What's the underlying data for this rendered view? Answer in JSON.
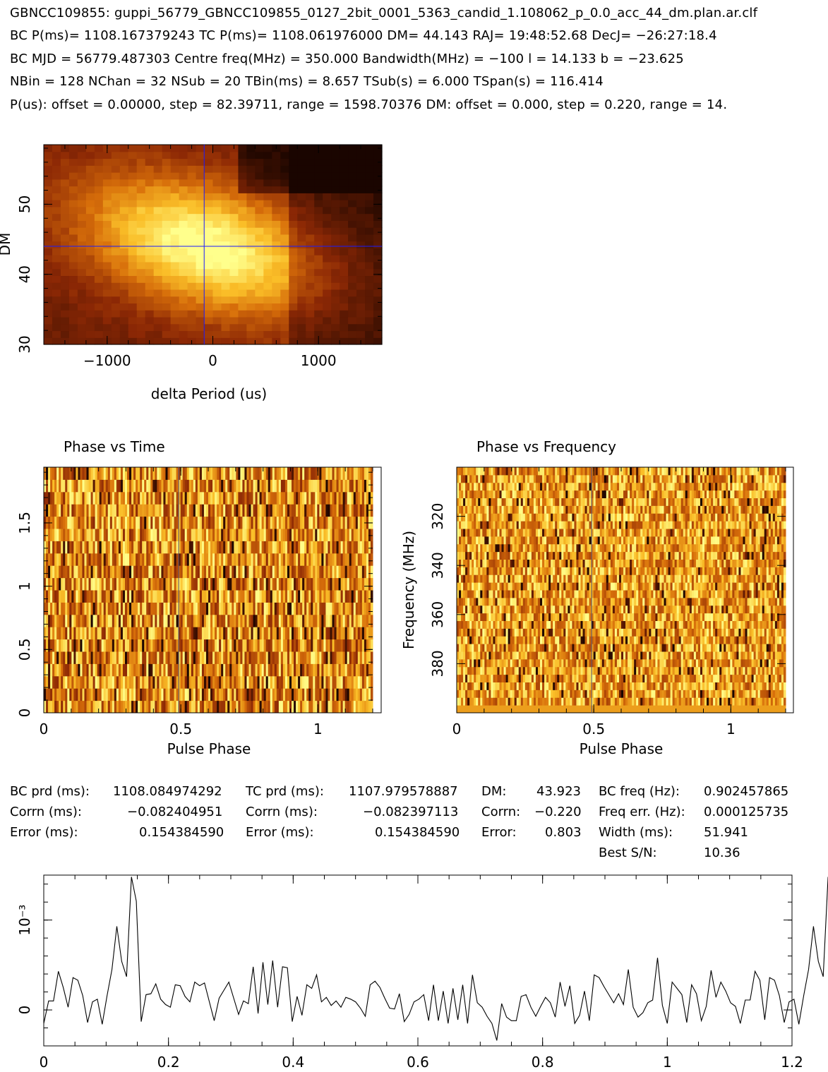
{
  "header": {
    "line1": "GBNCC109855: guppi_56779_GBNCC109855_0127_2bit_0001_5363_candid_1.108062_p_0.0_acc_44_dm.plan.ar.clf",
    "line2": "BC P(ms)= 1108.167379243 TC P(ms)= 1108.061976000 DM= 44.143 RAJ= 19:48:52.68 DecJ= −26:27:18.4",
    "line3": "BC MJD = 56779.487303 Centre freq(MHz) = 350.000 Bandwidth(MHz) = −100 l = 14.133 b = −23.625",
    "line4": "NBin = 128 NChan = 32 NSub = 20 TBin(ms) = 8.657 TSub(s) = 6.000 TSpan(s) = 116.414",
    "line5": "P(us): offset = 0.00000, step = 82.39711, range = 1598.70376 DM: offset = 0.000, step = 0.220, range = 14."
  },
  "stats": {
    "c1": {
      "l1": "BC prd (ms):",
      "v1": "1108.084974292",
      "l2": "Corrn (ms):",
      "v2": "−0.082404951",
      "l3": "Error (ms):",
      "v3": "0.154384590"
    },
    "c2": {
      "l1": "TC prd (ms):",
      "v1": "1107.979578887",
      "l2": "Corrn (ms):",
      "v2": "−0.082397113",
      "l3": "Error (ms):",
      "v3": "0.154384590"
    },
    "c3": {
      "l1": "DM:",
      "v1": "43.923",
      "l2": "Corrn:",
      "v2": "−0.220",
      "l3": "Error:",
      "v3": "0.803"
    },
    "c4": {
      "l1": "BC freq (Hz):",
      "v1": "0.902457865",
      "l2": "Freq err. (Hz):",
      "v2": "0.000125735",
      "l3": "Width (ms):",
      "v3": "51.941",
      "l4": "Best S/N:",
      "v4": "10.36"
    }
  },
  "colors": {
    "dark": "#1a0500",
    "mid": "#c85a00",
    "bright": "#ffff80",
    "cursor": "#1a1aff"
  },
  "chart_data": [
    {
      "type": "heatmap",
      "xlabel": "delta Period (us)",
      "ylabel": "DM",
      "xlim": [
        -1600,
        1600
      ],
      "ylim": [
        30,
        58.5
      ],
      "xticks": [
        -1000,
        0,
        1000
      ],
      "yticks": [
        30,
        40,
        50
      ],
      "peak": {
        "x": -82,
        "y": 44
      },
      "grid": false
    },
    {
      "type": "heatmap",
      "title": "Phase vs Time",
      "xlabel": "Pulse Phase",
      "ylabel": "",
      "xlim": [
        0,
        1.2
      ],
      "ylim": [
        0,
        1.94
      ],
      "xticks": [
        0,
        0.5,
        1
      ],
      "yticks": [
        0,
        0.5,
        1,
        1.5
      ],
      "cursor_x": 0.5,
      "grid": false
    },
    {
      "type": "heatmap",
      "title": "Phase vs Frequency",
      "xlabel": "Pulse Phase",
      "ylabel": "Frequency (MHz)",
      "xlim": [
        0,
        1.2
      ],
      "ylim": [
        300,
        400
      ],
      "xticks": [
        0,
        0.5,
        1
      ],
      "yticks": [
        320,
        340,
        360,
        380
      ],
      "cursor_x": 0.5,
      "grid": false
    },
    {
      "type": "line",
      "xlabel": "",
      "ylabel": "10⁻³",
      "xlim": [
        0,
        1.2
      ],
      "ylim": [
        -0.0004,
        0.0015
      ],
      "xticks": [
        0,
        0.2,
        0.4,
        0.6,
        0.8,
        1,
        1.2
      ],
      "yticks": [
        0,
        0.001
      ],
      "ytick_labels": [
        "0",
        "10⁻³"
      ],
      "x_start": 0,
      "x_step": 0.0078125,
      "y": [
        -0.00015,
        0.0001,
        0.0001,
        0.00043,
        0.00025,
        3e-05,
        0.00036,
        0.00033,
        0.00016,
        -0.00014,
        9e-05,
        0.00012,
        -0.00016,
        0.00016,
        0.00045,
        0.00093,
        0.00054,
        0.00037,
        0.00148,
        0.00121,
        -0.00013,
        0.00017,
        0.00018,
        0.00029,
        0.00012,
        6e-05,
        3e-05,
        0.00028,
        0.00027,
        0.00015,
        9e-05,
        0.00031,
        0.00027,
        0.0003,
        9e-05,
        -0.00012,
        0.00013,
        0.00022,
        0.00031,
        0.00013,
        -5e-05,
        0.0001,
        7e-05,
        0.00048,
        -4e-05,
        0.00053,
        6e-05,
        0.00055,
        3e-05,
        0.00048,
        0.00047,
        -0.00013,
        0.00015,
        -6e-05,
        0.00028,
        0.00024,
        0.00039,
        9e-05,
        0.00014,
        5e-05,
        0.0001,
        3e-05,
        0.00014,
        0.00012,
        9e-05,
        2e-05,
        -7e-05,
        0.00028,
        0.00032,
        0.00025,
        0.00013,
        2e-05,
        1e-05,
        0.00018,
        -0.00013,
        -5e-05,
        9e-05,
        0.00012,
        0.00017,
        -0.00012,
        0.00028,
        -0.00012,
        0.00021,
        -0.00015,
        0.00024,
        -0.00011,
        0.00028,
        -0.00015,
        0.00039,
        8e-05,
        3e-05,
        -7e-05,
        -0.00015,
        -0.00034,
        7e-05,
        -8e-05,
        -0.00012,
        -0.00012,
        0.00015,
        0.00017,
        3e-05,
        -7e-05,
        4e-05,
        0.00014,
        8e-05,
        -8e-05,
        0.00031,
        4e-05,
        0.00027,
        -0.00015,
        -6e-05,
        0.00021,
        -0.00012,
        0.00039,
        0.00036,
        0.00026,
        0.00017,
        8e-05,
        0.00018,
        6e-05,
        0.00045,
        3e-05,
        -8e-05,
        -3e-05,
        8e-05,
        0.00011,
        0.00058,
        5e-05,
        -0.00015,
        0.00031,
        0.00024,
        0.00017,
        -0.00014,
        0.00028,
        0.00018,
        -0.00012,
        4e-05,
        0.00044,
        0.00014,
        0.00031,
        0.00021,
        8e-05,
        4e-05,
        -0.00015,
        0.00011,
        0.00011,
        0.00043,
        0.00033,
        -0.00011,
        0.00036,
        0.00033,
        0.00016,
        -0.00014,
        9e-05,
        0.00012,
        -0.00016,
        0.00016,
        0.00045,
        0.00093,
        0.00054,
        0.00037,
        0.00148,
        0.00121,
        -0.00013,
        0.00017,
        0.00018,
        0.00029,
        0.00012
      ]
    }
  ]
}
